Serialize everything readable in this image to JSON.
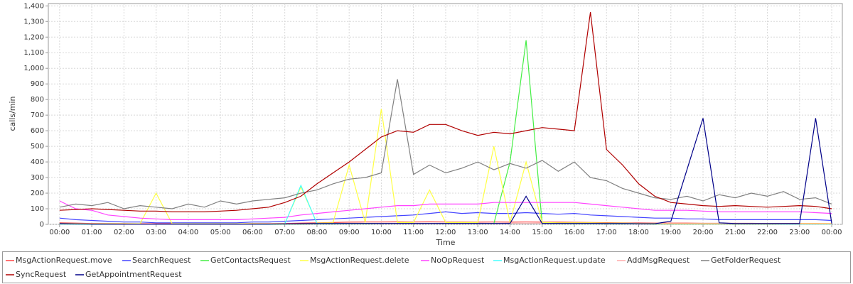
{
  "chart_data": {
    "type": "line",
    "x_label": "Time",
    "y_label": "calls/min",
    "x": [
      0,
      0.5,
      1,
      1.5,
      2,
      2.5,
      3,
      3.5,
      4,
      4.5,
      5,
      5.5,
      6,
      6.5,
      7,
      7.5,
      8,
      8.5,
      9,
      9.5,
      10,
      10.5,
      11,
      11.5,
      12,
      12.5,
      13,
      13.5,
      14,
      14.5,
      15,
      15.5,
      16,
      16.5,
      17,
      17.5,
      18,
      18.5,
      19,
      19.5,
      20,
      20.5,
      21,
      21.5,
      22,
      22.5,
      23,
      23.5,
      24
    ],
    "xlim": [
      -0.35,
      24.33
    ],
    "xticks": [
      {
        "value": 0,
        "label": "00:00"
      },
      {
        "value": 1,
        "label": "01:00"
      },
      {
        "value": 2,
        "label": "02:00"
      },
      {
        "value": 3,
        "label": "03:00"
      },
      {
        "value": 4,
        "label": "04:00"
      },
      {
        "value": 5,
        "label": "05:00"
      },
      {
        "value": 6,
        "label": "06:00"
      },
      {
        "value": 7,
        "label": "07:00"
      },
      {
        "value": 8,
        "label": "08:00"
      },
      {
        "value": 9,
        "label": "09:00"
      },
      {
        "value": 10,
        "label": "10:00"
      },
      {
        "value": 11,
        "label": "11:00"
      },
      {
        "value": 12,
        "label": "12:00"
      },
      {
        "value": 13,
        "label": "13:00"
      },
      {
        "value": 14,
        "label": "14:00"
      },
      {
        "value": 15,
        "label": "15:00"
      },
      {
        "value": 16,
        "label": "16:00"
      },
      {
        "value": 17,
        "label": "17:00"
      },
      {
        "value": 18,
        "label": "18:00"
      },
      {
        "value": 19,
        "label": "19:00"
      },
      {
        "value": 20,
        "label": "20:00"
      },
      {
        "value": 21,
        "label": "21:00"
      },
      {
        "value": 22,
        "label": "22:00"
      },
      {
        "value": 23,
        "label": "23:00"
      },
      {
        "value": 24,
        "label": "00:00"
      }
    ],
    "ylim": [
      0,
      1415
    ],
    "yticks": [
      0,
      100,
      200,
      300,
      400,
      500,
      600,
      700,
      800,
      900,
      {
        "value": 1000,
        "label": "1,000"
      },
      {
        "value": 1100,
        "label": "1,100"
      },
      {
        "value": 1200,
        "label": "1,200"
      },
      {
        "value": 1300,
        "label": "1,300"
      },
      {
        "value": 1400,
        "label": "1,400"
      }
    ],
    "grid": true,
    "series": [
      {
        "name": "MsgActionRequest.move",
        "color": "#ff4444",
        "values": [
          10,
          8,
          6,
          5,
          5,
          4,
          4,
          4,
          4,
          4,
          4,
          4,
          5,
          5,
          6,
          8,
          10,
          12,
          14,
          15,
          15,
          16,
          15,
          16,
          15,
          15,
          14,
          15,
          14,
          15,
          14,
          14,
          13,
          12,
          11,
          10,
          9,
          8,
          8,
          8,
          7,
          7,
          7,
          7,
          6,
          6,
          6,
          6,
          5
        ]
      },
      {
        "name": "SearchRequest",
        "color": "#4444ff",
        "values": [
          40,
          30,
          25,
          20,
          15,
          15,
          10,
          10,
          10,
          10,
          10,
          10,
          15,
          15,
          20,
          25,
          30,
          35,
          40,
          45,
          50,
          55,
          60,
          70,
          80,
          70,
          75,
          70,
          70,
          75,
          70,
          65,
          70,
          60,
          55,
          50,
          45,
          40,
          40,
          35,
          35,
          30,
          30,
          30,
          30,
          30,
          30,
          30,
          25
        ]
      },
      {
        "name": "GetContactsRequest",
        "color": "#44ee44",
        "values": [
          2,
          2,
          1,
          1,
          1,
          1,
          1,
          1,
          1,
          1,
          1,
          1,
          1,
          1,
          2,
          2,
          3,
          3,
          4,
          4,
          5,
          5,
          5,
          5,
          5,
          5,
          5,
          5,
          400,
          1180,
          5,
          4,
          4,
          4,
          3,
          3,
          3,
          2,
          2,
          2,
          2,
          2,
          2,
          2,
          2,
          2,
          2,
          2,
          2
        ]
      },
      {
        "name": "MsgActionRequest.delete",
        "color": "#ffff44",
        "values": [
          5,
          5,
          4,
          4,
          4,
          4,
          200,
          4,
          4,
          4,
          4,
          4,
          4,
          4,
          5,
          240,
          8,
          10,
          380,
          12,
          740,
          12,
          12,
          220,
          12,
          12,
          12,
          500,
          12,
          400,
          12,
          10,
          10,
          10,
          8,
          8,
          6,
          6,
          5,
          5,
          5,
          5,
          5,
          5,
          5,
          5,
          5,
          5,
          5
        ]
      },
      {
        "name": "NoOpRequest",
        "color": "#ff44ff",
        "values": [
          150,
          100,
          90,
          60,
          50,
          40,
          35,
          30,
          30,
          30,
          30,
          30,
          35,
          40,
          45,
          60,
          70,
          80,
          90,
          100,
          110,
          120,
          120,
          130,
          130,
          130,
          130,
          140,
          140,
          140,
          140,
          140,
          140,
          130,
          120,
          110,
          100,
          90,
          90,
          90,
          85,
          80,
          80,
          80,
          80,
          80,
          80,
          75,
          70
        ]
      },
      {
        "name": "MsgActionRequest.update",
        "color": "#44ffff",
        "values": [
          2,
          2,
          2,
          2,
          1,
          1,
          1,
          1,
          1,
          1,
          1,
          1,
          2,
          2,
          3,
          250,
          5,
          5,
          6,
          6,
          6,
          6,
          6,
          6,
          6,
          6,
          6,
          6,
          6,
          6,
          6,
          6,
          6,
          6,
          5,
          5,
          4,
          4,
          3,
          3,
          3,
          3,
          3,
          3,
          3,
          2,
          2,
          2,
          2
        ]
      },
      {
        "name": "AddMsgRequest",
        "color": "#ffaaaa",
        "values": [
          3,
          3,
          3,
          2,
          2,
          2,
          2,
          2,
          2,
          2,
          2,
          2,
          2,
          3,
          3,
          4,
          5,
          5,
          6,
          6,
          6,
          6,
          6,
          6,
          6,
          6,
          6,
          6,
          6,
          6,
          6,
          6,
          6,
          6,
          5,
          5,
          4,
          4,
          4,
          4,
          3,
          3,
          3,
          3,
          3,
          3,
          3,
          3,
          3
        ]
      },
      {
        "name": "GetFolderRequest",
        "color": "#808080",
        "values": [
          110,
          130,
          120,
          140,
          100,
          120,
          110,
          100,
          130,
          110,
          150,
          130,
          150,
          160,
          170,
          200,
          220,
          260,
          290,
          300,
          330,
          930,
          320,
          380,
          330,
          360,
          400,
          350,
          390,
          360,
          410,
          340,
          400,
          300,
          280,
          230,
          200,
          170,
          160,
          180,
          150,
          190,
          170,
          200,
          180,
          210,
          160,
          170,
          130
        ]
      },
      {
        "name": "SyncRequest",
        "color": "#b00000",
        "values": [
          90,
          95,
          100,
          95,
          90,
          85,
          85,
          80,
          80,
          80,
          85,
          90,
          100,
          110,
          140,
          180,
          260,
          330,
          400,
          480,
          560,
          600,
          590,
          640,
          640,
          600,
          570,
          590,
          580,
          600,
          620,
          610,
          600,
          1360,
          480,
          380,
          260,
          180,
          140,
          130,
          120,
          115,
          120,
          115,
          110,
          115,
          120,
          115,
          100
        ]
      },
      {
        "name": "GetAppointmentRequest",
        "color": "#000088",
        "values": [
          5,
          3,
          2,
          2,
          1,
          1,
          1,
          1,
          1,
          1,
          1,
          1,
          2,
          2,
          3,
          4,
          5,
          5,
          6,
          6,
          6,
          6,
          6,
          6,
          6,
          6,
          6,
          6,
          6,
          180,
          6,
          6,
          6,
          6,
          5,
          5,
          4,
          4,
          20,
          350,
          680,
          10,
          5,
          5,
          5,
          5,
          5,
          680,
          5
        ]
      }
    ]
  }
}
